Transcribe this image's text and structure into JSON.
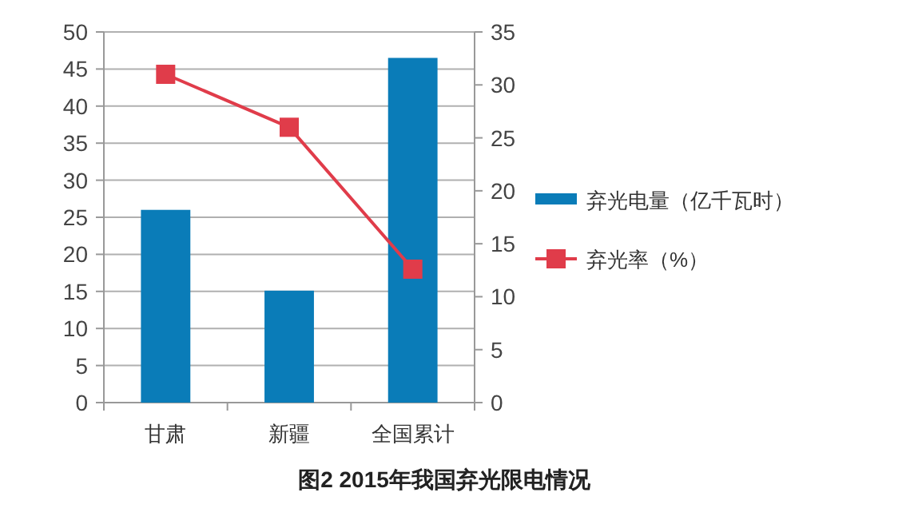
{
  "chart_data": {
    "type": "bar",
    "title": "图2 2015年我国弃光限电情况",
    "categories": [
      "甘肃",
      "新疆",
      "全国累计"
    ],
    "series": [
      {
        "name": "弃光电量（亿千瓦时）",
        "color": "#0a7cb8",
        "values": [
          26.0,
          15.1,
          46.5
        ]
      },
      {
        "name": "弃光率（%）",
        "type": "line",
        "axis": "y2",
        "color": "#e03c4a",
        "marker": "square",
        "values": [
          31,
          26,
          12.6
        ]
      }
    ],
    "ylim": [
      0,
      50
    ],
    "yticks": [
      0,
      5,
      10,
      15,
      20,
      25,
      30,
      35,
      40,
      45,
      50
    ],
    "y2lim": [
      0,
      35
    ],
    "y2ticks": [
      0,
      5,
      10,
      15,
      20,
      25,
      30,
      35
    ],
    "grid": "y",
    "legend": "right"
  }
}
